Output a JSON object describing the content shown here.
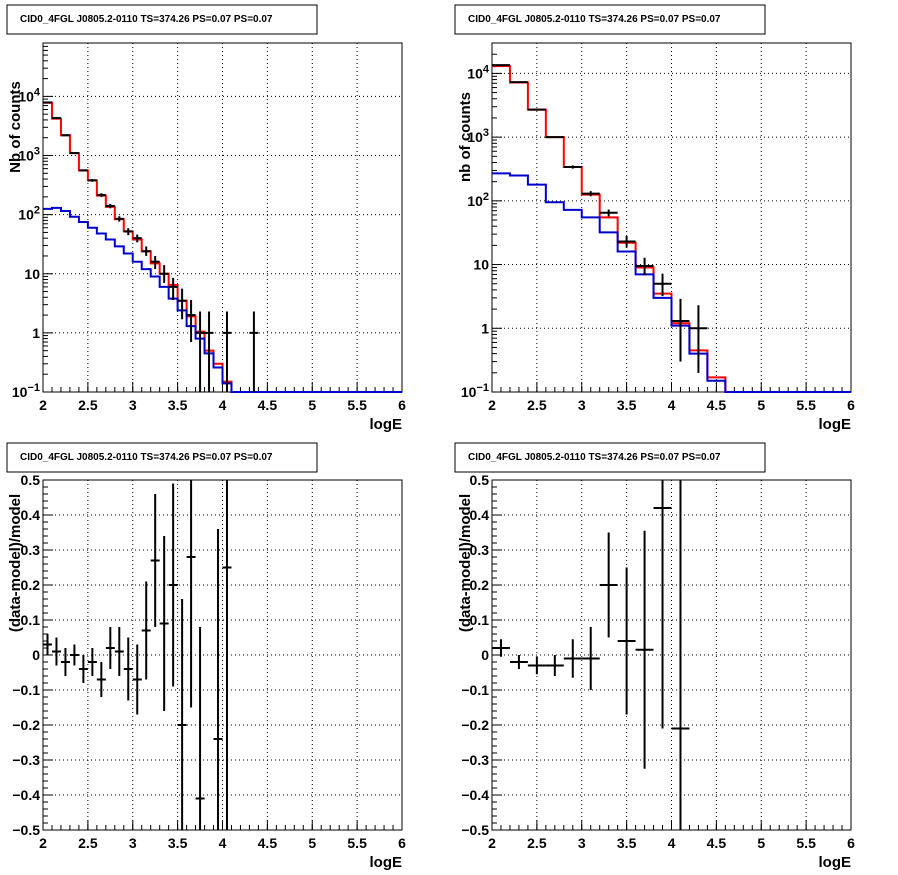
{
  "colors": {
    "data": "#000000",
    "total_model": "#ff0000",
    "background_model": "#0000cc",
    "grid": "#000000"
  },
  "chart_data": [
    {
      "type": "line",
      "title": "CID0_4FGL J0805.2-0110 TS=374.26 PS=0.07 PS=0.07",
      "xlabel": "logE",
      "ylabel": "Nb of counts",
      "xlim": [
        2,
        6
      ],
      "ylim": [
        0.1,
        80000
      ],
      "yscale": "log",
      "grid": true,
      "xticks": [
        "2",
        "2.5",
        "3",
        "3.5",
        "4",
        "4.5",
        "5",
        "5.5",
        "6"
      ],
      "yticks": [
        "10⁻¹",
        "1",
        "10",
        "10²",
        "10³",
        "10⁴"
      ],
      "bin_edges": [
        2.0,
        2.1,
        2.2,
        2.3,
        2.4,
        2.5,
        2.6,
        2.7,
        2.8,
        2.9,
        3.0,
        3.1,
        3.2,
        3.3,
        3.4,
        3.5,
        3.6,
        3.7,
        3.8,
        3.9,
        4.0,
        4.1,
        4.2,
        4.3,
        4.4,
        4.5,
        4.6,
        4.7,
        4.8,
        4.9,
        5.0,
        5.1,
        5.2,
        5.3,
        5.4,
        5.5,
        5.6,
        5.7,
        5.8,
        5.9,
        6.0
      ],
      "series": [
        {
          "role": "total_model",
          "kind": "step",
          "values": [
            7800,
            4200,
            2200,
            1100,
            560,
            380,
            210,
            135,
            84,
            52,
            38,
            24,
            15,
            10,
            6.5,
            3.5,
            1.9,
            1.05,
            0.5,
            0.3,
            0.15,
            0.1,
            0.1,
            0.1,
            0.1,
            0.1,
            0.1,
            0.1,
            0.1,
            0.1,
            0.1,
            0.1,
            0.1,
            0.1,
            0.1,
            0.1,
            0.1,
            0.1,
            0.1,
            0.1
          ]
        },
        {
          "role": "background_model",
          "kind": "step",
          "values": [
            125,
            130,
            115,
            92,
            75,
            60,
            48,
            38,
            29,
            22,
            16,
            12,
            9,
            6,
            3.8,
            2.4,
            1.3,
            0.8,
            0.45,
            0.26,
            0.14,
            0.1,
            0.1,
            0.1,
            0.1,
            0.1,
            0.1,
            0.1,
            0.1,
            0.1,
            0.1,
            0.1,
            0.1,
            0.1,
            0.1,
            0.1,
            0.1,
            0.1,
            0.1,
            0.1
          ]
        },
        {
          "role": "data",
          "kind": "points",
          "x": [
            2.05,
            2.15,
            2.25,
            2.35,
            2.45,
            2.55,
            2.65,
            2.75,
            2.85,
            2.95,
            3.05,
            3.15,
            3.25,
            3.35,
            3.45,
            3.55,
            3.65,
            3.75,
            3.85,
            4.05,
            4.35
          ],
          "y": [
            7900,
            4300,
            2200,
            1100,
            560,
            380,
            215,
            140,
            85,
            52,
            40,
            24,
            16,
            10,
            6,
            3.5,
            2,
            1,
            1,
            1,
            1
          ],
          "ylow": [
            7800,
            4200,
            2150,
            1070,
            540,
            360,
            200,
            128,
            76,
            45,
            34,
            20,
            12,
            7,
            3.6,
            1.7,
            0.7,
            0.1,
            0.1,
            0.1,
            0.1
          ],
          "yhigh": [
            8000,
            4400,
            2250,
            1130,
            580,
            400,
            230,
            152,
            94,
            59,
            46,
            29,
            20,
            14,
            8.5,
            5.6,
            3.6,
            2.3,
            2.3,
            2.3,
            2.3
          ]
        }
      ]
    },
    {
      "type": "line",
      "title": "CID0_4FGL J0805.2-0110 TS=374.26 PS=0.07 PS=0.07",
      "xlabel": "logE",
      "ylabel": "nb of counts",
      "xlim": [
        2,
        6
      ],
      "ylim": [
        0.1,
        30000
      ],
      "yscale": "log",
      "grid": true,
      "xticks": [
        "2",
        "2.5",
        "3",
        "3.5",
        "4",
        "4.5",
        "5",
        "5.5",
        "6"
      ],
      "yticks": [
        "10⁻¹",
        "1",
        "10",
        "10²",
        "10³",
        "10⁴"
      ],
      "bin_edges": [
        2.0,
        2.2,
        2.4,
        2.6,
        2.8,
        3.0,
        3.2,
        3.4,
        3.6,
        3.8,
        4.0,
        4.2,
        4.4,
        4.6,
        4.8,
        5.0,
        5.2,
        5.4,
        5.6,
        5.8,
        6.0
      ],
      "series": [
        {
          "role": "total_model",
          "kind": "step",
          "values": [
            13000,
            7200,
            2700,
            1000,
            340,
            125,
            55,
            22,
            9,
            3.5,
            1.2,
            0.45,
            0.17,
            0.1,
            0.1,
            0.1,
            0.1,
            0.1,
            0.1,
            0.1
          ]
        },
        {
          "role": "background_model",
          "kind": "step",
          "values": [
            270,
            250,
            180,
            95,
            72,
            55,
            32,
            16,
            7,
            3,
            1.1,
            0.4,
            0.15,
            0.1,
            0.1,
            0.1,
            0.1,
            0.1,
            0.1,
            0.1
          ]
        },
        {
          "role": "data",
          "kind": "points",
          "x": [
            2.1,
            2.3,
            2.5,
            2.7,
            2.9,
            3.1,
            3.3,
            3.5,
            3.7,
            3.9,
            4.1,
            4.3
          ],
          "y": [
            13500,
            7300,
            2700,
            1000,
            340,
            130,
            65,
            23,
            9.5,
            5,
            1.3,
            1
          ],
          "ylow": [
            13300,
            7200,
            2650,
            970,
            320,
            118,
            57,
            18.5,
            6.8,
            3.2,
            0.3,
            0.2
          ],
          "yhigh": [
            13700,
            7400,
            2750,
            1030,
            360,
            142,
            73,
            28,
            12.8,
            7.2,
            2.9,
            2.3
          ]
        }
      ]
    },
    {
      "type": "scatter",
      "title": "CID0_4FGL J0805.2-0110 TS=374.26 PS=0.07 PS=0.07",
      "xlabel": "logE",
      "ylabel": "(data-model)/model",
      "xlim": [
        2,
        6
      ],
      "ylim": [
        -0.5,
        0.5
      ],
      "grid": true,
      "xticks": [
        "2",
        "2.5",
        "3",
        "3.5",
        "4",
        "4.5",
        "5",
        "5.5",
        "6"
      ],
      "yticks": [
        "−0.5",
        "−0.4",
        "−0.3",
        "−0.2",
        "−0.1",
        "0",
        "0.1",
        "0.2",
        "0.3",
        "0.4",
        "0.5"
      ],
      "series": [
        {
          "role": "data",
          "kind": "points",
          "x": [
            2.05,
            2.15,
            2.25,
            2.35,
            2.45,
            2.55,
            2.65,
            2.75,
            2.85,
            2.95,
            3.05,
            3.15,
            3.25,
            3.35,
            3.45,
            3.55,
            3.65,
            3.75,
            3.95,
            4.05
          ],
          "y": [
            0.03,
            0.01,
            -0.02,
            0.0,
            -0.04,
            -0.02,
            -0.07,
            0.02,
            0.01,
            -0.04,
            -0.07,
            0.07,
            0.27,
            0.09,
            0.2,
            -0.2,
            0.28,
            -0.41,
            -0.24,
            0.25
          ],
          "yerr": [
            0.03,
            0.04,
            0.04,
            0.03,
            0.04,
            0.04,
            0.05,
            0.06,
            0.07,
            0.09,
            0.1,
            0.14,
            0.19,
            0.25,
            0.29,
            0.36,
            0.43,
            0.49,
            0.6,
            0.8
          ]
        }
      ]
    },
    {
      "type": "scatter",
      "title": "CID0_4FGL J0805.2-0110 TS=374.26 PS=0.07 PS=0.07",
      "xlabel": "logE",
      "ylabel": "(data-model)/model",
      "xlim": [
        2,
        6
      ],
      "ylim": [
        -0.5,
        0.5
      ],
      "grid": true,
      "xticks": [
        "2",
        "2.5",
        "3",
        "3.5",
        "4",
        "4.5",
        "5",
        "5.5",
        "6"
      ],
      "yticks": [
        "−0.5",
        "−0.4",
        "−0.3",
        "−0.2",
        "−0.1",
        "0",
        "0.1",
        "0.2",
        "0.3",
        "0.4",
        "0.5"
      ],
      "series": [
        {
          "role": "data",
          "kind": "points",
          "x": [
            2.1,
            2.3,
            2.5,
            2.7,
            2.9,
            3.1,
            3.3,
            3.5,
            3.7,
            3.9,
            4.1
          ],
          "y": [
            0.02,
            -0.02,
            -0.03,
            -0.03,
            -0.01,
            -0.01,
            0.2,
            0.04,
            0.015,
            0.42,
            -0.21
          ],
          "yerr": [
            0.025,
            0.02,
            0.025,
            0.03,
            0.055,
            0.09,
            0.15,
            0.21,
            0.34,
            0.63,
            0.8
          ]
        }
      ]
    }
  ]
}
